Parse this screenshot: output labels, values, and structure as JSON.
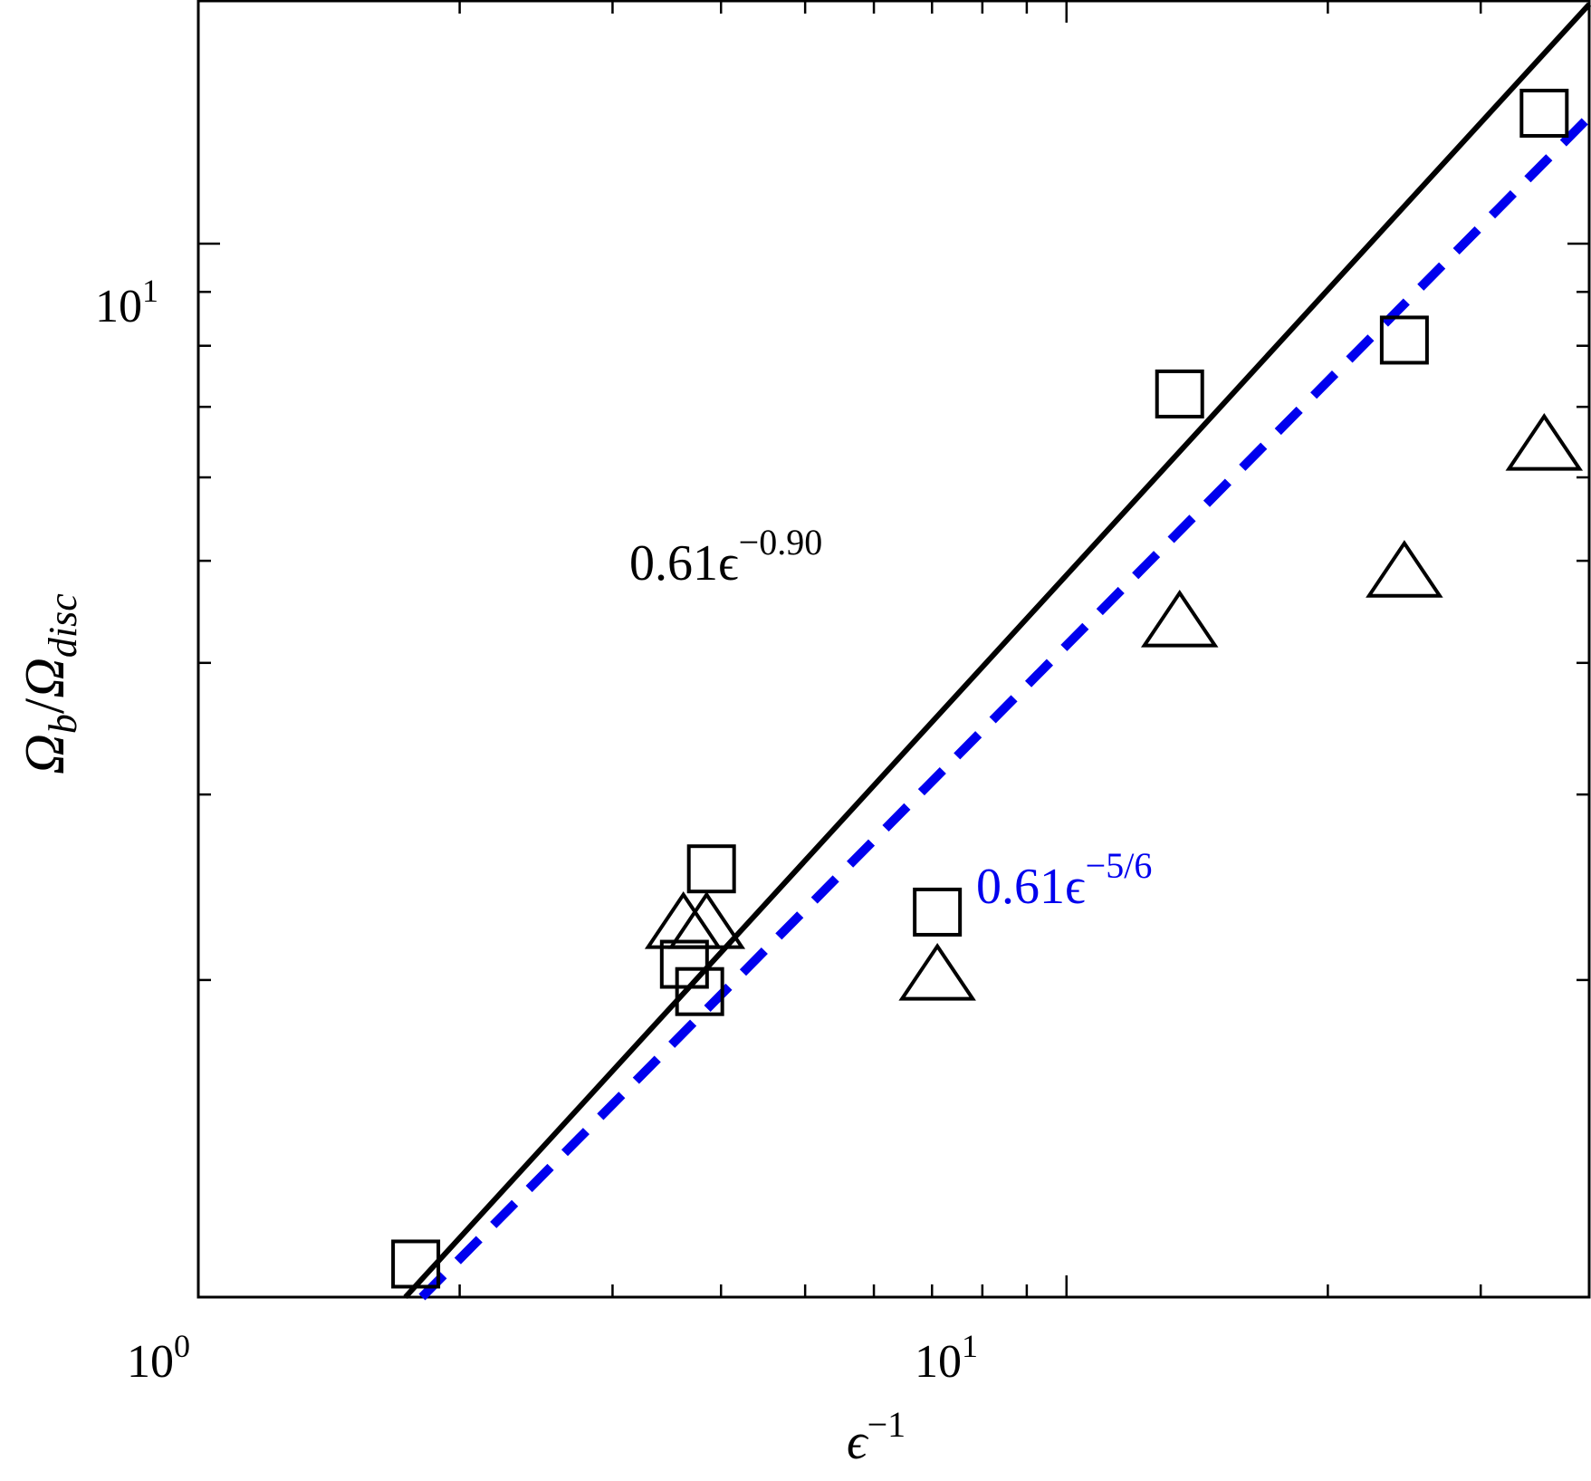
{
  "chart_data": {
    "type": "scatter",
    "title": "",
    "xlabel": {
      "base": "ϵ",
      "sup": "−1"
    },
    "ylabel": {
      "main": "Ω",
      "sub1": "b",
      "slash": "/",
      "main2": "Ω",
      "sub2": "disc"
    },
    "xscale": "log",
    "yscale": "log",
    "xlim": [
      1.0,
      40.0
    ],
    "ylim": [
      1.0,
      17.0
    ],
    "grid": false,
    "legend": "none",
    "x_ticks": [
      {
        "value": 1,
        "base": "10",
        "exp": "0"
      },
      {
        "value": 10,
        "base": "10",
        "exp": "1"
      }
    ],
    "y_ticks": [
      {
        "value": 1,
        "base": "10",
        "exp": "0"
      },
      {
        "value": 10,
        "base": "10",
        "exp": "1"
      }
    ],
    "series": [
      {
        "marker": "square",
        "points": [
          [
            1.78,
            1.075
          ],
          [
            3.63,
            2.07
          ],
          [
            3.78,
            1.95
          ],
          [
            3.9,
            2.55
          ],
          [
            7.1,
            2.32
          ],
          [
            13.5,
            7.2
          ],
          [
            24.5,
            8.1
          ],
          [
            35.5,
            13.3
          ]
        ]
      },
      {
        "marker": "triangle",
        "points": [
          [
            3.62,
            2.25
          ],
          [
            3.85,
            2.25
          ],
          [
            7.1,
            2.01
          ],
          [
            13.5,
            4.35
          ],
          [
            24.5,
            4.85
          ],
          [
            35.5,
            6.4
          ]
        ]
      }
    ],
    "fits": [
      {
        "label_base": "0.61ϵ",
        "label_exp": "−0.90",
        "coef": 0.61,
        "exponent": 0.9,
        "style": "solid",
        "color": "#000000"
      },
      {
        "label_base": "0.61ϵ",
        "label_exp": "−5/6",
        "coef": 0.61,
        "exponent": 0.8333,
        "style": "dashed",
        "color": "#0000ee"
      }
    ]
  }
}
